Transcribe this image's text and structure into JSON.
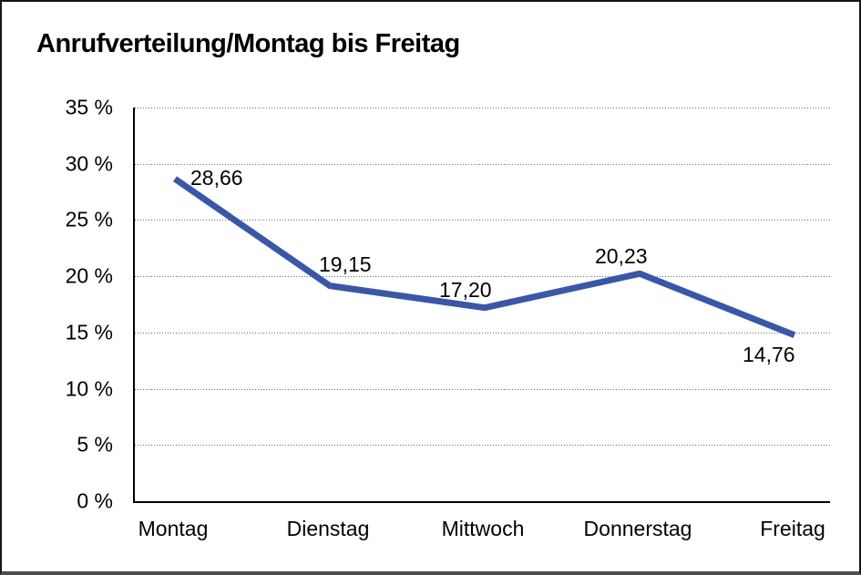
{
  "chart_data": {
    "type": "line",
    "title": "Anrufverteilung/Montag bis Freitag",
    "categories": [
      "Montag",
      "Dienstag",
      "Mittwoch",
      "Donnerstag",
      "Freitag"
    ],
    "values": [
      28.66,
      19.15,
      17.2,
      20.23,
      14.76
    ],
    "value_labels": [
      "28,66",
      "19,15",
      "17,20",
      "20,23",
      "14,76"
    ],
    "ylim": [
      0,
      35
    ],
    "ytick_step": 5,
    "ytick_labels": [
      "35 %",
      "30 %",
      "25 %",
      "20 %",
      "15 %",
      "10 %",
      "5 %",
      "0 %"
    ],
    "xlabel": "",
    "ylabel": "",
    "grid": "horizontal-dotted",
    "legend": "none",
    "line_color": "#3A57A7",
    "text_color": "#000000",
    "frame_border_color": "#161616"
  }
}
